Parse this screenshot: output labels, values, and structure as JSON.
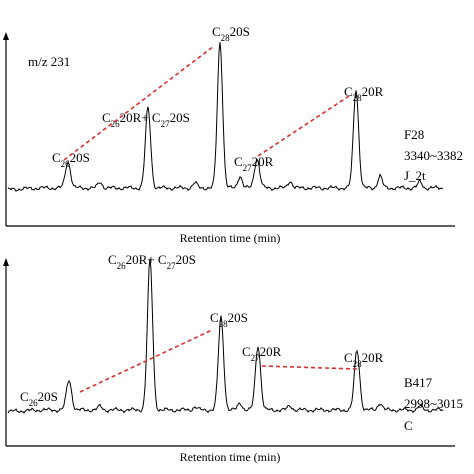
{
  "chart_data": [
    {
      "type": "line",
      "ion_label": "m/z 231",
      "xlabel": "Retention time (min)",
      "sample_lines": [
        "F28",
        "3340~3382",
        "J_2t"
      ],
      "peaks": [
        {
          "label": "C_{26}20S",
          "rel_height": 0.18
        },
        {
          "label": "C_{26}20R+ C_{27}20S",
          "rel_height": 0.55
        },
        {
          "label": "C_{28}20S",
          "rel_height": 1.0
        },
        {
          "label": "C_{27}20R",
          "rel_height": 0.2
        },
        {
          "label": "C_{28}20R",
          "rel_height": 0.68
        }
      ],
      "dashed_links": [
        [
          "C_{26}20S",
          "C_{28}20S"
        ],
        [
          "C_{27}20R",
          "C_{28}20R"
        ]
      ],
      "link_color": "#e03030"
    },
    {
      "type": "line",
      "xlabel": "Retention time (min)",
      "sample_lines": [
        "B417",
        "2998~3015",
        "C"
      ],
      "peaks": [
        {
          "label": "C_{26}20S",
          "rel_height": 0.2
        },
        {
          "label": "C_{26}20R+ C_{27}20S",
          "rel_height": 1.0
        },
        {
          "label": "C_{28}20S",
          "rel_height": 0.62
        },
        {
          "label": "C_{27}20R",
          "rel_height": 0.43
        },
        {
          "label": "C_{28}20R",
          "rel_height": 0.4
        }
      ],
      "dashed_links": [
        [
          "C_{26}20S",
          "C_{28}20S"
        ],
        [
          "C_{27}20R",
          "C_{28}20R"
        ]
      ],
      "link_color": "#e03030"
    }
  ]
}
